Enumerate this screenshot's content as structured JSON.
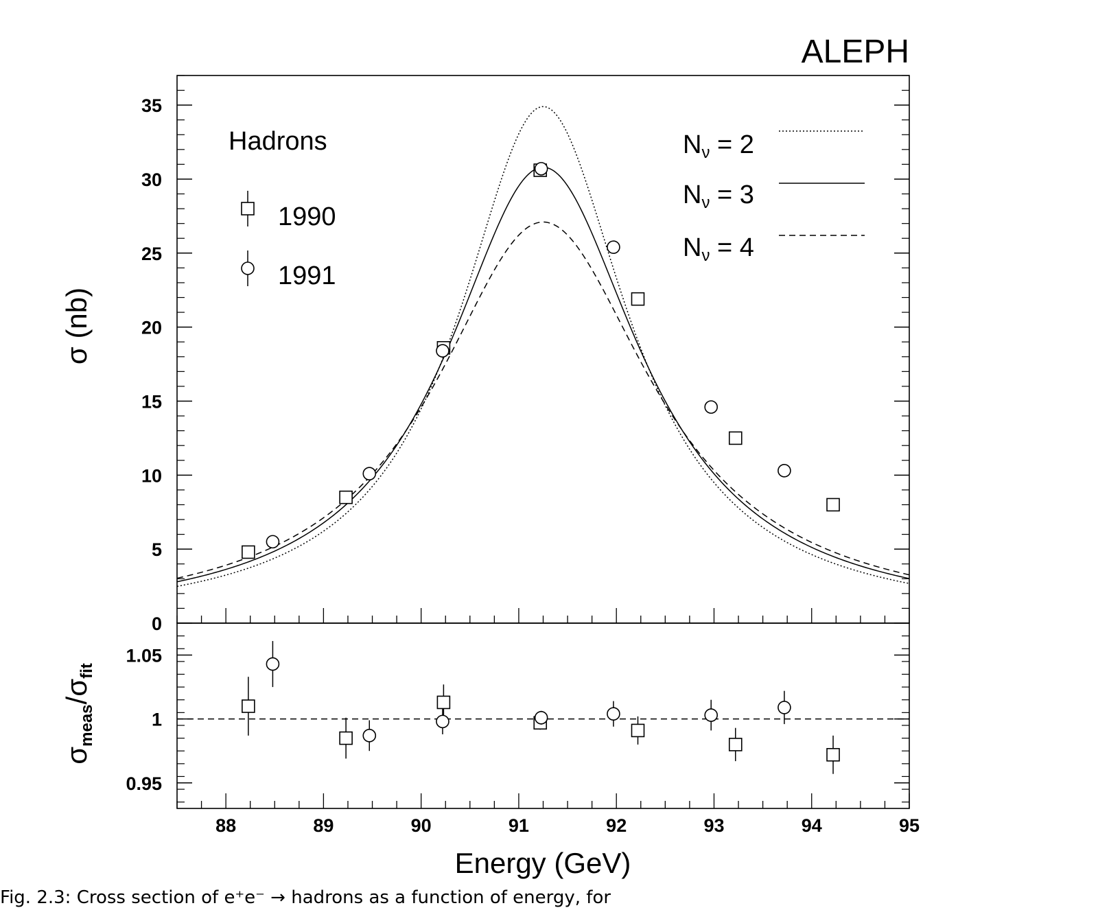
{
  "experiment_label": "ALEPH",
  "caption": "Fig. 2.3: Cross section of e⁺e⁻ → hadrons as a function of energy, for",
  "chart_data": [
    {
      "type": "scatter",
      "panel": "main",
      "title": "",
      "process_label": "Hadrons",
      "xlabel": "Energy (GeV)",
      "ylabel": "σ (nb)",
      "xlim": [
        87.5,
        95
      ],
      "ylim": [
        0,
        37
      ],
      "yticks": [
        0,
        5,
        10,
        15,
        20,
        25,
        30,
        35
      ],
      "legend_placement": "top-left and top-right",
      "series": [
        {
          "name": "1990",
          "marker": "square",
          "x": [
            88.23,
            89.23,
            90.23,
            91.22,
            92.22,
            93.22,
            94.22
          ],
          "y": [
            4.8,
            8.5,
            18.6,
            30.6,
            21.9,
            12.5,
            8.0
          ],
          "yerr": [
            0.08,
            0.12,
            0.2,
            0.15,
            0.2,
            0.15,
            0.12
          ]
        },
        {
          "name": "1991",
          "marker": "circle",
          "x": [
            88.48,
            89.47,
            90.22,
            91.23,
            91.97,
            92.97,
            93.72
          ],
          "y": [
            5.5,
            10.1,
            18.4,
            30.7,
            25.4,
            14.6,
            10.3
          ],
          "yerr": [
            0.08,
            0.12,
            0.2,
            0.15,
            0.2,
            0.15,
            0.12
          ]
        }
      ],
      "curves": [
        {
          "name": "Nν = 2",
          "label_main": "N",
          "label_sub": "ν",
          "label_rest": " = 2",
          "style": "dotted",
          "peak_sigma": 34.9,
          "peak_energy": 91.25,
          "width": 2.12
        },
        {
          "name": "Nν = 3",
          "label_main": "N",
          "label_sub": "ν",
          "label_rest": " = 3",
          "style": "solid",
          "peak_sigma": 30.8,
          "peak_energy": 91.25,
          "width": 2.42
        },
        {
          "name": "Nν = 4",
          "label_main": "N",
          "label_sub": "ν",
          "label_rest": " = 4",
          "style": "dashed",
          "peak_sigma": 27.1,
          "peak_energy": 91.25,
          "width": 2.72
        }
      ]
    },
    {
      "type": "scatter",
      "panel": "ratio",
      "xlabel": "Energy (GeV)",
      "ylabel_main": "σ",
      "ylabel_sub1": "meas",
      "ylabel_sub2": "fit",
      "xlim": [
        87.5,
        95
      ],
      "ylim": [
        0.93,
        1.075
      ],
      "yticks": [
        0.95,
        1,
        1.05
      ],
      "ytick_labels": [
        "0.95",
        "1",
        "1.05"
      ],
      "xticks": [
        88,
        89,
        90,
        91,
        92,
        93,
        94,
        95
      ],
      "reference_line": 1,
      "series": [
        {
          "name": "1990",
          "marker": "square",
          "x": [
            88.23,
            89.23,
            90.23,
            91.22,
            92.22,
            93.22,
            94.22
          ],
          "y": [
            1.01,
            0.985,
            1.013,
            0.997,
            0.991,
            0.98,
            0.972
          ],
          "yerr": [
            0.023,
            0.016,
            0.014,
            0.004,
            0.011,
            0.013,
            0.015
          ]
        },
        {
          "name": "1991",
          "marker": "circle",
          "x": [
            88.48,
            89.47,
            90.22,
            91.23,
            91.97,
            92.97,
            93.72
          ],
          "y": [
            1.043,
            0.987,
            0.998,
            1.001,
            1.004,
            1.003,
            1.009
          ],
          "yerr": [
            0.018,
            0.012,
            0.01,
            0.004,
            0.01,
            0.012,
            0.013
          ]
        }
      ]
    }
  ]
}
